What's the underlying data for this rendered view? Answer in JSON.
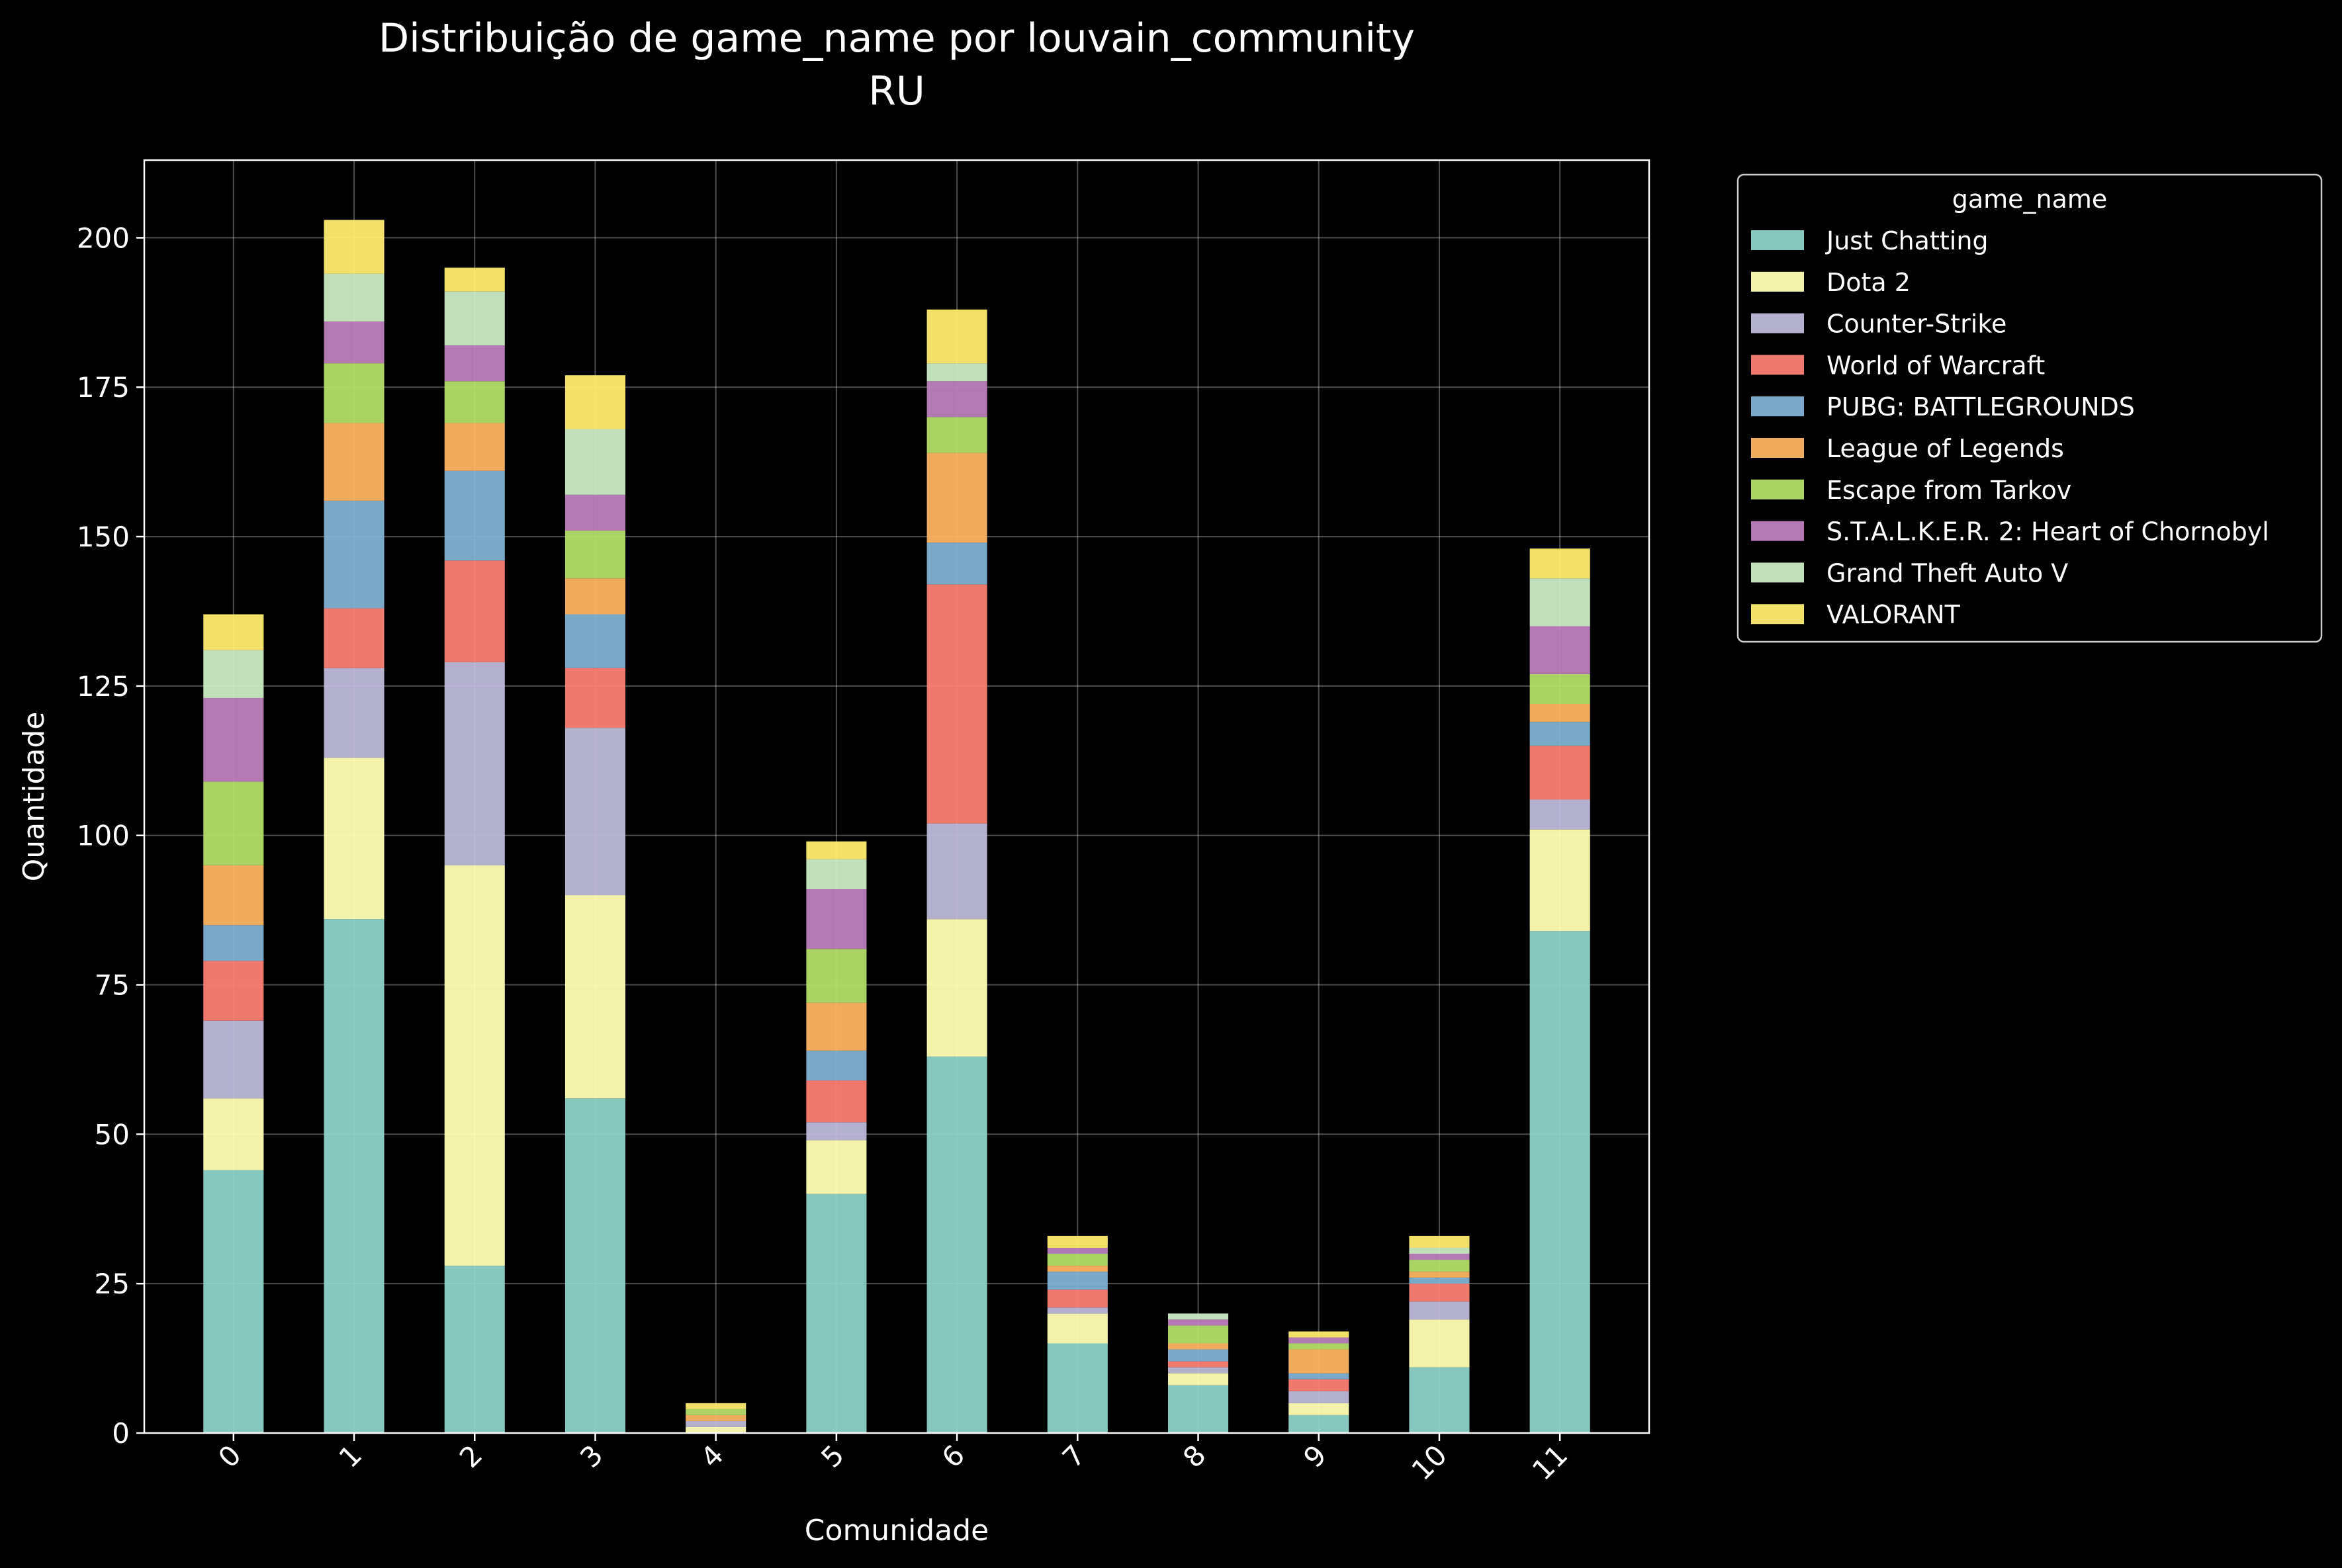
{
  "chart_data": {
    "type": "bar",
    "stacked": true,
    "title": "Distribuição de game_name por louvain_community",
    "subtitle": "RU",
    "xlabel": "Comunidade",
    "ylabel": "Quantidade",
    "ylim": [
      0,
      213
    ],
    "yticks": [
      0,
      25,
      50,
      75,
      100,
      125,
      150,
      175,
      200
    ],
    "grid": true,
    "legend_title": "game_name",
    "legend_position": "outside-top-right",
    "categories": [
      "0",
      "1",
      "2",
      "3",
      "4",
      "5",
      "6",
      "7",
      "8",
      "9",
      "10",
      "11"
    ],
    "series": [
      {
        "name": "Just Chatting",
        "color": "#8dd3c7",
        "values": [
          44,
          86,
          28,
          56,
          0,
          40,
          63,
          15,
          8,
          3,
          11,
          84
        ]
      },
      {
        "name": "Dota 2",
        "color": "#ffffb3",
        "values": [
          12,
          27,
          67,
          34,
          1,
          9,
          23,
          5,
          2,
          2,
          8,
          17
        ]
      },
      {
        "name": "Counter-Strike",
        "color": "#bebada",
        "values": [
          13,
          15,
          34,
          28,
          1,
          3,
          16,
          1,
          1,
          2,
          3,
          5
        ]
      },
      {
        "name": "World of Warcraft",
        "color": "#fb8072",
        "values": [
          10,
          10,
          17,
          10,
          0,
          7,
          40,
          3,
          1,
          2,
          3,
          9
        ]
      },
      {
        "name": "PUBG: BATTLEGROUNDS",
        "color": "#80b1d3",
        "values": [
          6,
          18,
          15,
          9,
          0,
          5,
          7,
          3,
          2,
          1,
          1,
          4
        ]
      },
      {
        "name": "League of Legends",
        "color": "#fdb462",
        "values": [
          10,
          13,
          8,
          6,
          1,
          8,
          15,
          1,
          1,
          4,
          1,
          3
        ]
      },
      {
        "name": "Escape from Tarkov",
        "color": "#b3de69",
        "values": [
          14,
          10,
          7,
          8,
          1,
          9,
          6,
          2,
          3,
          1,
          2,
          5
        ]
      },
      {
        "name": "S.T.A.L.K.E.R. 2: Heart of Chornobyl",
        "color": "#bc80bd",
        "values": [
          14,
          7,
          6,
          6,
          0,
          10,
          6,
          1,
          1,
          1,
          1,
          8
        ]
      },
      {
        "name": "Grand Theft Auto V",
        "color": "#ccebc5",
        "values": [
          8,
          8,
          9,
          11,
          0,
          5,
          3,
          0,
          1,
          0,
          1,
          8
        ]
      },
      {
        "name": "VALORANT",
        "color": "#ffed6f",
        "values": [
          6,
          9,
          4,
          9,
          1,
          3,
          9,
          2,
          0,
          1,
          2,
          5
        ]
      }
    ]
  }
}
